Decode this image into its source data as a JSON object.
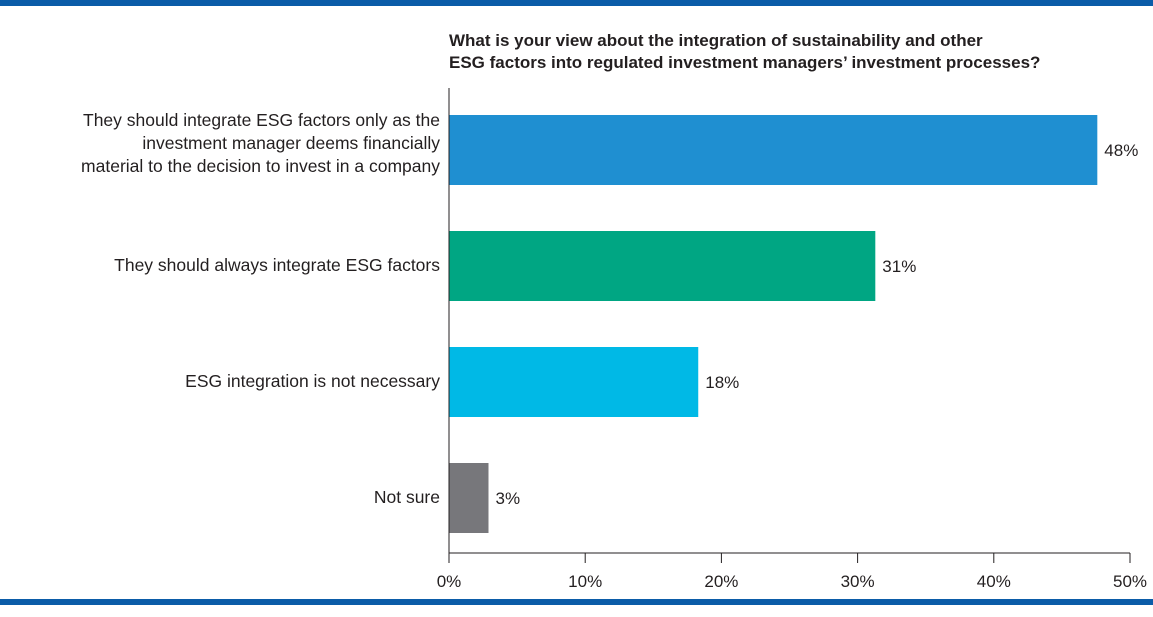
{
  "chart_data": {
    "type": "bar",
    "orientation": "horizontal",
    "title_lines": [
      "What is your view about the integration of sustainability and other",
      "ESG factors into regulated investment managers’ investment processes?"
    ],
    "categories": [
      {
        "lines": [
          "They should integrate ESG factors only as the",
          "investment manager deems financially",
          "material to the decision to invest in a company"
        ],
        "value": 47.6,
        "value_label": "48%",
        "color": "#1f8fd1"
      },
      {
        "lines": [
          "They should always integrate ESG factors"
        ],
        "value": 31.3,
        "value_label": "31%",
        "color": "#00a683"
      },
      {
        "lines": [
          "ESG integration is not necessary"
        ],
        "value": 18.3,
        "value_label": "18%",
        "color": "#00b9e6"
      },
      {
        "lines": [
          "Not sure"
        ],
        "value": 2.9,
        "value_label": "3%",
        "color": "#77777b"
      }
    ],
    "xlim": [
      0,
      50
    ],
    "x_ticks": [
      {
        "value": 0,
        "label": "0%"
      },
      {
        "value": 10,
        "label": "10%"
      },
      {
        "value": 20,
        "label": "20%"
      },
      {
        "value": 30,
        "label": "30%"
      },
      {
        "value": 40,
        "label": "40%"
      },
      {
        "value": 50,
        "label": "50%"
      }
    ],
    "grid": false,
    "legend": "none"
  },
  "colors": {
    "rule": "#0b5ca8",
    "axis": "#231f20",
    "text": "#231f20"
  }
}
